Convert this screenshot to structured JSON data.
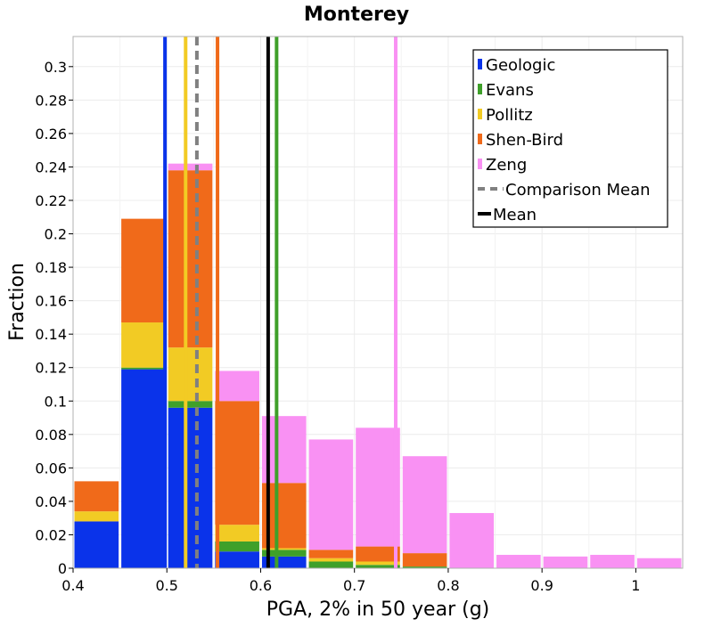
{
  "chart_data": {
    "type": "bar",
    "title": "Monterey",
    "xlabel": "PGA, 2% in 50 year (g)",
    "ylabel": "Fraction",
    "xlim": [
      0.4,
      1.05
    ],
    "ylim": [
      0,
      0.318
    ],
    "grid": true,
    "legend_placement": "top-right",
    "bin_width": 0.05,
    "xticks": [
      0.4,
      0.5,
      0.6,
      0.7,
      0.8,
      0.9,
      1.0
    ],
    "xtick_labels": [
      "0.4",
      "0.5",
      "0.6",
      "0.7",
      "0.8",
      "0.9",
      "1"
    ],
    "yticks": [
      0,
      0.02,
      0.04,
      0.06,
      0.08,
      0.1,
      0.12,
      0.14,
      0.16,
      0.18,
      0.2,
      0.22,
      0.24,
      0.26,
      0.28,
      0.3
    ],
    "ytick_labels": [
      "0",
      "0.02",
      "0.04",
      "0.06",
      "0.08",
      "0.1",
      "0.12",
      "0.14",
      "0.16",
      "0.18",
      "0.2",
      "0.22",
      "0.24",
      "0.26",
      "0.28",
      "0.3"
    ],
    "bin_starts": [
      0.4,
      0.45,
      0.5,
      0.55,
      0.6,
      0.65,
      0.7,
      0.75,
      0.8,
      0.85,
      0.9,
      0.95,
      1.0
    ],
    "series": [
      {
        "name": "Geologic",
        "color": "#0a33ea",
        "values": [
          0.028,
          0.119,
          0.096,
          0.01,
          0.007,
          0,
          0,
          0,
          0,
          0,
          0,
          0,
          0
        ]
      },
      {
        "name": "Evans",
        "color": "#3fa02a",
        "values": [
          0,
          0.001,
          0.004,
          0.006,
          0.004,
          0.004,
          0.002,
          0.001,
          0,
          0,
          0,
          0,
          0
        ]
      },
      {
        "name": "Pollitz",
        "color": "#f2cb24",
        "values": [
          0.006,
          0.027,
          0.032,
          0.01,
          0.001,
          0.002,
          0.002,
          0,
          0,
          0,
          0,
          0,
          0
        ]
      },
      {
        "name": "Shen-Bird",
        "color": "#f06a1a",
        "values": [
          0.018,
          0.062,
          0.106,
          0.074,
          0.039,
          0.005,
          0.009,
          0.008,
          0,
          0,
          0,
          0,
          0
        ]
      },
      {
        "name": "Zeng",
        "color": "#f991f3",
        "values": [
          0,
          0,
          0.004,
          0.018,
          0.04,
          0.066,
          0.071,
          0.058,
          0.033,
          0.008,
          0.007,
          0.008,
          0.006
        ]
      }
    ],
    "vertical_lines": [
      {
        "name": "Geologic",
        "color": "#0a33ea",
        "x": 0.498,
        "style": "solid"
      },
      {
        "name": "Evans",
        "color": "#3fa02a",
        "x": 0.617,
        "style": "solid"
      },
      {
        "name": "Pollitz",
        "color": "#f2cb24",
        "x": 0.52,
        "style": "solid"
      },
      {
        "name": "Shen-Bird",
        "color": "#f06a1a",
        "x": 0.554,
        "style": "solid"
      },
      {
        "name": "Zeng",
        "color": "#f991f3",
        "x": 0.744,
        "style": "solid"
      },
      {
        "name": "Comparison Mean",
        "color": "#808080",
        "x": 0.532,
        "style": "dashed"
      },
      {
        "name": "Mean",
        "color": "#000000",
        "x": 0.608,
        "style": "solid"
      }
    ],
    "legend": [
      {
        "label": "Geologic",
        "color": "#0a33ea",
        "kind": "patch"
      },
      {
        "label": "Evans",
        "color": "#3fa02a",
        "kind": "patch"
      },
      {
        "label": "Pollitz",
        "color": "#f2cb24",
        "kind": "patch"
      },
      {
        "label": "Shen-Bird",
        "color": "#f06a1a",
        "kind": "patch"
      },
      {
        "label": "Zeng",
        "color": "#f991f3",
        "kind": "patch"
      },
      {
        "label": "Comparison Mean",
        "color": "#808080",
        "kind": "dashed-line"
      },
      {
        "label": "Mean",
        "color": "#000000",
        "kind": "line"
      }
    ]
  }
}
